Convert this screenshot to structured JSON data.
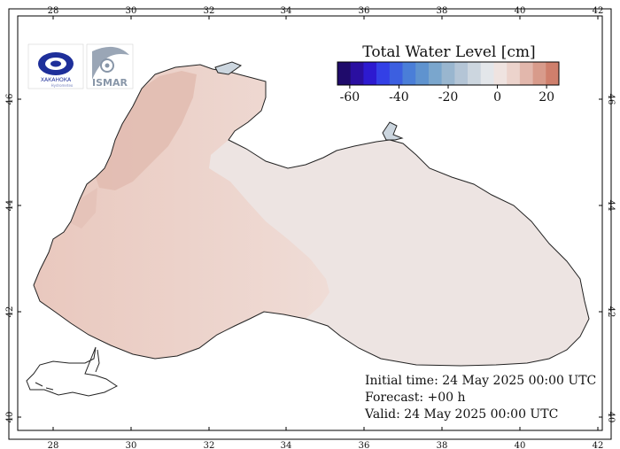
{
  "map": {
    "title": "Total Water Level [cm]",
    "lon_ticks": [
      "28",
      "30",
      "32",
      "34",
      "36",
      "38",
      "40",
      "42"
    ],
    "lat_ticks": [
      "40",
      "42",
      "44",
      "46"
    ],
    "colorbar": {
      "tick_labels": [
        "-60",
        "-40",
        "-20",
        "0",
        "20"
      ],
      "range": [
        -65,
        25
      ],
      "colors": [
        "#1f0b6b",
        "#2a0fa0",
        "#2d1ad0",
        "#3340e6",
        "#3c5fe0",
        "#4a7ed8",
        "#5f93cf",
        "#7aa6cd",
        "#99b6cf",
        "#b4c5d6",
        "#ccd6df",
        "#e3e6ea",
        "#efe3e0",
        "#ecd3cc",
        "#e2b7ac",
        "#d89b8b",
        "#cf7f6c"
      ]
    },
    "info": {
      "initial": "Initial time: 24 May 2025 00:00 UTC",
      "forecast": "Forecast: +00 h",
      "valid": "Valid: 24 May 2025 00:00 UTC"
    },
    "logos": {
      "left_caption": "ХАКАНОКА",
      "left_subcaption": "Hydrometeo",
      "right_text": "ISMAR"
    }
  }
}
